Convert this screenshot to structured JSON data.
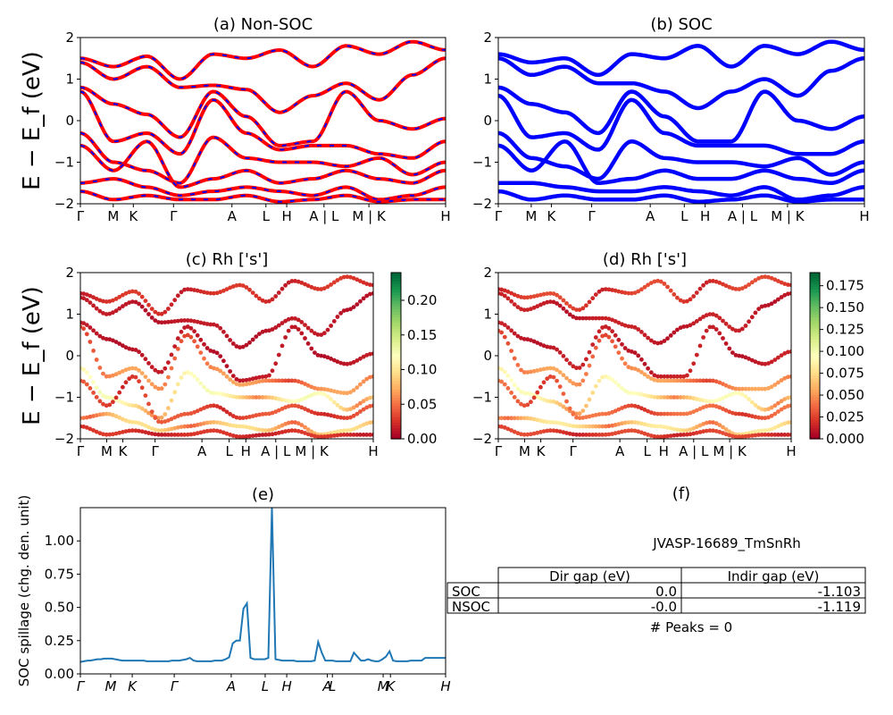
{
  "colors": {
    "nonsoc_line": "#ff0000",
    "nonsoc_dash": "#0000ff",
    "soc_line": "#0000ff",
    "spillage_line": "#1f77b4",
    "colormap": "RdYlGn"
  },
  "chart_data": [
    {
      "id": "a",
      "type": "line",
      "title": "(a) Non-SOC",
      "ylabel": "E − E_f (eV)",
      "ylim": [
        -2,
        2
      ],
      "yticks": [
        "−2",
        "−1",
        "0",
        "1",
        "2"
      ],
      "xticks": [
        "Γ",
        "M",
        "K",
        "Γ",
        "A",
        "L",
        "H",
        "A | L",
        "M | K",
        "H"
      ],
      "line_style": "red with blue dashes",
      "series": [
        {
          "values": [
            1.5,
            1.3,
            1.55,
            1.0,
            1.6,
            1.5,
            1.7,
            1.3,
            1.8,
            1.6,
            1.9,
            1.7
          ]
        },
        {
          "values": [
            1.4,
            1.0,
            1.3,
            0.8,
            0.85,
            0.75,
            0.2,
            0.6,
            0.9,
            0.5,
            1.1,
            1.5
          ]
        },
        {
          "values": [
            0.8,
            0.4,
            0.15,
            -0.4,
            0.7,
            0.1,
            -0.6,
            -0.5,
            0.7,
            0.0,
            -0.2,
            0.05
          ]
        },
        {
          "values": [
            0.7,
            -0.5,
            -0.3,
            -0.8,
            0.5,
            -0.3,
            -0.7,
            -0.6,
            -0.6,
            -0.8,
            -0.9,
            -0.5
          ]
        },
        {
          "values": [
            -0.3,
            -1.0,
            -1.2,
            -1.5,
            -0.4,
            -0.9,
            -1.0,
            -1.0,
            -1.1,
            -0.9,
            -1.3,
            -1.0
          ]
        },
        {
          "values": [
            -0.6,
            -1.2,
            -0.5,
            -1.6,
            -1.4,
            -1.2,
            -1.5,
            -1.4,
            -1.2,
            -1.4,
            -1.5,
            -1.2
          ]
        },
        {
          "values": [
            -1.5,
            -1.4,
            -1.6,
            -1.8,
            -1.7,
            -1.6,
            -1.7,
            -1.8,
            -1.6,
            -1.9,
            -1.8,
            -1.6
          ]
        },
        {
          "values": [
            -1.7,
            -1.9,
            -1.8,
            -1.9,
            -1.9,
            -1.8,
            -1.95,
            -1.9,
            -1.8,
            -1.95,
            -1.9,
            -1.9
          ]
        }
      ]
    },
    {
      "id": "b",
      "type": "line",
      "title": "(b) SOC",
      "ylim": [
        -2,
        2
      ],
      "yticks": [
        "−2",
        "−1",
        "0",
        "1",
        "2"
      ],
      "xticks": [
        "Γ",
        "M",
        "K",
        "Γ",
        "A",
        "L",
        "H",
        "A | L",
        "M | K",
        "H"
      ],
      "line_style": "blue thick",
      "series": [
        {
          "values": [
            1.6,
            1.4,
            1.5,
            1.1,
            1.6,
            1.5,
            1.8,
            1.3,
            1.8,
            1.6,
            1.9,
            1.7
          ]
        },
        {
          "values": [
            1.5,
            1.1,
            1.3,
            0.9,
            0.9,
            0.7,
            0.3,
            0.7,
            1.0,
            0.6,
            1.2,
            1.5
          ]
        },
        {
          "values": [
            0.8,
            0.4,
            0.2,
            -0.3,
            0.7,
            0.1,
            -0.5,
            -0.5,
            0.7,
            0.0,
            -0.2,
            0.1
          ]
        },
        {
          "values": [
            0.6,
            -0.4,
            -0.3,
            -0.7,
            0.5,
            -0.3,
            -0.6,
            -0.6,
            -0.6,
            -0.8,
            -0.8,
            -0.5
          ]
        },
        {
          "values": [
            -0.3,
            -0.9,
            -1.1,
            -1.4,
            -0.5,
            -0.9,
            -1.0,
            -1.0,
            -1.1,
            -0.9,
            -1.3,
            -1.0
          ]
        },
        {
          "values": [
            -0.6,
            -1.2,
            -0.5,
            -1.5,
            -1.4,
            -1.2,
            -1.4,
            -1.4,
            -1.2,
            -1.4,
            -1.5,
            -1.2
          ]
        },
        {
          "values": [
            -1.5,
            -1.5,
            -1.6,
            -1.7,
            -1.7,
            -1.6,
            -1.7,
            -1.8,
            -1.6,
            -1.9,
            -1.8,
            -1.6
          ]
        },
        {
          "values": [
            -1.7,
            -1.9,
            -1.8,
            -1.9,
            -1.9,
            -1.8,
            -1.95,
            -1.9,
            -1.8,
            -1.95,
            -1.9,
            -1.9
          ]
        }
      ]
    },
    {
      "id": "c",
      "type": "scatter",
      "title": "(c)  Rh ['s']",
      "ylabel": "E − E_f (eV)",
      "ylim": [
        -2,
        2
      ],
      "yticks": [
        "−2",
        "−1",
        "0",
        "1",
        "2"
      ],
      "xticks": [
        "Γ",
        "M",
        "K",
        "Γ",
        "A",
        "L",
        "H",
        "A | L",
        "M | K",
        "H"
      ],
      "colorbar": {
        "min": 0.0,
        "max": 0.24,
        "ticks": [
          "0.00",
          "0.05",
          "0.10",
          "0.15",
          "0.20"
        ]
      },
      "bands": [
        {
          "values": [
            1.5,
            1.3,
            1.55,
            1.0,
            1.6,
            1.5,
            1.7,
            1.3,
            1.8,
            1.6,
            1.9,
            1.7
          ],
          "weight": 0.02
        },
        {
          "values": [
            1.4,
            1.0,
            1.3,
            0.8,
            0.85,
            0.75,
            0.2,
            0.6,
            0.9,
            0.5,
            1.1,
            1.5
          ],
          "weight": 0.01
        },
        {
          "values": [
            0.8,
            0.4,
            0.15,
            -0.4,
            0.7,
            0.1,
            -0.6,
            -0.5,
            0.7,
            0.0,
            -0.2,
            0.05
          ],
          "weight": 0.01
        },
        {
          "values": [
            0.7,
            -0.5,
            -0.3,
            -0.8,
            0.5,
            -0.3,
            -0.7,
            -0.6,
            -0.6,
            -0.8,
            -0.9,
            -0.5
          ],
          "weight": 0.05
        },
        {
          "values": [
            -0.3,
            -1.0,
            -1.2,
            -1.5,
            -0.4,
            -0.9,
            -1.0,
            -1.0,
            -1.1,
            -0.9,
            -1.3,
            -1.0
          ],
          "weight": 0.09
        },
        {
          "values": [
            -0.6,
            -1.2,
            -0.5,
            -1.6,
            -1.4,
            -1.2,
            -1.5,
            -1.4,
            -1.2,
            -1.4,
            -1.5,
            -1.2
          ],
          "weight": 0.03
        },
        {
          "values": [
            -1.5,
            -1.4,
            -1.6,
            -1.8,
            -1.7,
            -1.6,
            -1.7,
            -1.8,
            -1.6,
            -1.9,
            -1.8,
            -1.6
          ],
          "weight": 0.07
        },
        {
          "values": [
            -1.7,
            -1.9,
            -1.8,
            -1.9,
            -1.9,
            -1.8,
            -1.95,
            -1.9,
            -1.8,
            -1.95,
            -1.9,
            -1.9
          ],
          "weight": 0.02
        }
      ]
    },
    {
      "id": "d",
      "type": "scatter",
      "title": "(d) Rh ['s']",
      "ylim": [
        -2,
        2
      ],
      "yticks": [
        "−2",
        "−1",
        "0",
        "1",
        "2"
      ],
      "xticks": [
        "Γ",
        "M",
        "K",
        "Γ",
        "A",
        "L",
        "H",
        "A | L",
        "M | K",
        "H"
      ],
      "colorbar": {
        "min": 0.0,
        "max": 0.19,
        "ticks": [
          "0.000",
          "0.025",
          "0.050",
          "0.075",
          "0.100",
          "0.125",
          "0.150",
          "0.175"
        ]
      },
      "bands": [
        {
          "values": [
            1.6,
            1.4,
            1.5,
            1.1,
            1.6,
            1.5,
            1.8,
            1.3,
            1.8,
            1.6,
            1.9,
            1.7
          ],
          "weight": 0.02
        },
        {
          "values": [
            1.5,
            1.1,
            1.3,
            0.9,
            0.9,
            0.7,
            0.3,
            0.7,
            1.0,
            0.6,
            1.2,
            1.5
          ],
          "weight": 0.01
        },
        {
          "values": [
            0.8,
            0.4,
            0.2,
            -0.3,
            0.7,
            0.1,
            -0.5,
            -0.5,
            0.7,
            0.0,
            -0.2,
            0.1
          ],
          "weight": 0.01
        },
        {
          "values": [
            0.6,
            -0.4,
            -0.3,
            -0.7,
            0.5,
            -0.3,
            -0.6,
            -0.6,
            -0.6,
            -0.8,
            -0.8,
            -0.5
          ],
          "weight": 0.04
        },
        {
          "values": [
            -0.3,
            -0.9,
            -1.1,
            -1.4,
            -0.5,
            -0.9,
            -1.0,
            -1.0,
            -1.1,
            -0.9,
            -1.3,
            -1.0
          ],
          "weight": 0.07
        },
        {
          "values": [
            -0.6,
            -1.2,
            -0.5,
            -1.5,
            -1.4,
            -1.2,
            -1.4,
            -1.4,
            -1.2,
            -1.4,
            -1.5,
            -1.2
          ],
          "weight": 0.03
        },
        {
          "values": [
            -1.5,
            -1.5,
            -1.6,
            -1.7,
            -1.7,
            -1.6,
            -1.7,
            -1.8,
            -1.6,
            -1.9,
            -1.8,
            -1.6
          ],
          "weight": 0.06
        },
        {
          "values": [
            -1.7,
            -1.9,
            -1.8,
            -1.9,
            -1.9,
            -1.8,
            -1.95,
            -1.9,
            -1.8,
            -1.95,
            -1.9,
            -1.9
          ],
          "weight": 0.02
        }
      ]
    },
    {
      "id": "e",
      "type": "line",
      "title": "(e)",
      "ylabel": "SOC spillage (chg. den. unit)",
      "ylim": [
        0,
        1.25
      ],
      "yticks": [
        "0.00",
        "0.25",
        "0.50",
        "0.75",
        "1.00"
      ],
      "xticks": [
        "Γ",
        "M",
        "K",
        "Γ",
        "A",
        "L",
        "H",
        "A",
        "L",
        "M",
        "K",
        "H"
      ],
      "x": [
        0,
        4,
        8,
        11,
        15,
        19,
        23,
        27,
        31,
        35,
        39,
        43,
        47,
        51,
        55,
        59,
        63,
        67,
        71,
        75,
        79,
        83,
        87,
        91,
        95,
        99,
        103,
        107,
        111,
        115,
        119,
        123,
        127,
        131,
        135,
        139,
        143,
        147,
        151,
        155,
        159,
        163,
        167,
        171,
        175,
        179,
        183,
        187,
        191,
        195,
        199,
        203,
        207,
        211,
        215,
        219,
        223,
        227,
        231,
        235,
        239,
        243,
        247,
        251,
        255,
        259,
        263,
        267,
        271,
        275,
        279,
        283,
        287,
        291,
        295,
        299,
        303,
        307,
        311,
        315,
        319,
        323,
        327,
        331,
        335,
        339,
        343,
        347,
        351,
        355,
        359,
        363,
        367,
        371,
        375,
        379,
        383,
        387,
        391,
        395,
        399,
        403,
        407,
        410
      ],
      "values": [
        0.09,
        0.095,
        0.1,
        0.1,
        0.105,
        0.11,
        0.11,
        0.115,
        0.115,
        0.115,
        0.11,
        0.105,
        0.1,
        0.1,
        0.1,
        0.1,
        0.1,
        0.1,
        0.1,
        0.095,
        0.095,
        0.095,
        0.095,
        0.095,
        0.095,
        0.095,
        0.1,
        0.1,
        0.1,
        0.105,
        0.11,
        0.12,
        0.1,
        0.095,
        0.095,
        0.095,
        0.095,
        0.095,
        0.1,
        0.1,
        0.1,
        0.11,
        0.125,
        0.23,
        0.25,
        0.25,
        0.49,
        0.53,
        0.12,
        0.11,
        0.11,
        0.11,
        0.11,
        0.12,
        1.25,
        0.11,
        0.105,
        0.1,
        0.1,
        0.1,
        0.1,
        0.095,
        0.095,
        0.095,
        0.095,
        0.095,
        0.1,
        0.24,
        0.16,
        0.1,
        0.1,
        0.1,
        0.095,
        0.095,
        0.095,
        0.095,
        0.095,
        0.16,
        0.13,
        0.1,
        0.1,
        0.11,
        0.1,
        0.095,
        0.095,
        0.11,
        0.13,
        0.17,
        0.1,
        0.095,
        0.095,
        0.095,
        0.095,
        0.1,
        0.1,
        0.1,
        0.1,
        0.12,
        0.12,
        0.12,
        0.12,
        0.12,
        0.12,
        0.12
      ]
    },
    {
      "id": "f",
      "type": "table",
      "title": "(f)",
      "caption": "JVASP-16689_TmSnRh",
      "columns": [
        "Dir gap (eV)",
        "Indir gap (eV)"
      ],
      "rows": [
        {
          "label": "SOC",
          "cells": [
            "0.0",
            "-1.103"
          ]
        },
        {
          "label": "NSOC",
          "cells": [
            "-0.0",
            "-1.119"
          ]
        }
      ],
      "footer": "# Peaks = 0"
    }
  ]
}
